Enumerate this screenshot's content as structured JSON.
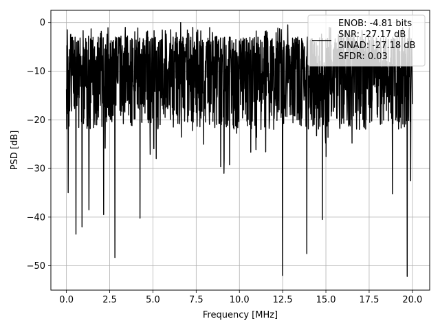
{
  "chart_data": {
    "type": "line",
    "title": "",
    "xlabel": "Frequency [MHz]",
    "ylabel": "PSD [dB]",
    "xlim": [
      -0.9,
      21.0
    ],
    "ylim": [
      -55,
      2.5
    ],
    "x_ticks": [
      0.0,
      2.5,
      5.0,
      7.5,
      10.0,
      12.5,
      15.0,
      17.5,
      20.0
    ],
    "x_tick_labels": [
      "0.0",
      "2.5",
      "5.0",
      "7.5",
      "10.0",
      "12.5",
      "15.0",
      "17.5",
      "20.0"
    ],
    "y_ticks": [
      0,
      -10,
      -20,
      -30,
      -40,
      -50
    ],
    "y_tick_labels": [
      "0",
      "−10",
      "−20",
      "−30",
      "−40",
      "−50"
    ],
    "grid": true,
    "legend_position": "top-right",
    "legend_lines": [
      "ENOB: -4.81 bits",
      "SNR: -27.17 dB",
      "SINAD: -27.18 dB",
      "SFDR: 0.03"
    ],
    "series": [
      {
        "color": "#000000",
        "x_start": 0.0,
        "x_end": 20.0,
        "n_points": 1600,
        "typical_range": [
          -22,
          -3
        ],
        "noise_floor_spikes": [
          {
            "x": 0.1,
            "y": -35
          },
          {
            "x": 0.55,
            "y": -43.5
          },
          {
            "x": 0.9,
            "y": -42
          },
          {
            "x": 1.3,
            "y": -38.5
          },
          {
            "x": 2.15,
            "y": -39.5
          },
          {
            "x": 2.8,
            "y": -48.3
          },
          {
            "x": 4.25,
            "y": -40.2
          },
          {
            "x": 9.1,
            "y": -31
          },
          {
            "x": 12.5,
            "y": -52
          },
          {
            "x": 13.9,
            "y": -47.5
          },
          {
            "x": 14.8,
            "y": -40.5
          },
          {
            "x": 18.85,
            "y": -35.2
          },
          {
            "x": 19.7,
            "y": -52.2
          },
          {
            "x": 19.9,
            "y": -32.5
          }
        ],
        "peaks": [
          {
            "x": 0.05,
            "y": -1.5
          },
          {
            "x": 3.4,
            "y": -1.0
          },
          {
            "x": 6.6,
            "y": 0.0
          },
          {
            "x": 7.3,
            "y": -1.0
          },
          {
            "x": 12.8,
            "y": -0.5
          },
          {
            "x": 15.2,
            "y": -1.0
          }
        ]
      }
    ]
  }
}
